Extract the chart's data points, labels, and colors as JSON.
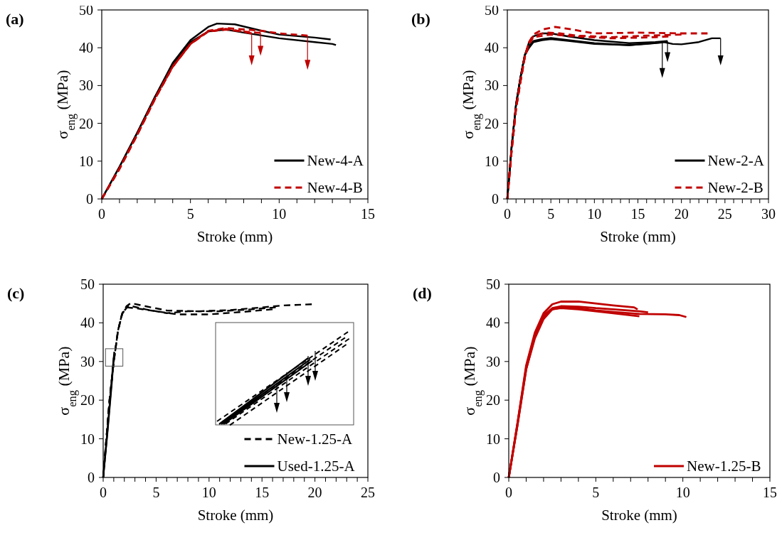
{
  "chart_data": [
    {
      "type": "line",
      "title": "(a)",
      "xlabel": "Stroke (mm)",
      "ylabel": "σ$_{eng}$ (MPa)",
      "xlim": [
        0,
        15
      ],
      "ylim": [
        0,
        50
      ],
      "yticks": [
        0,
        10,
        20,
        30,
        40,
        50
      ],
      "xticks": [
        0,
        {
          "value": 1,
          "label": null
        },
        {
          "value": 2,
          "label": null
        },
        {
          "value": 3,
          "label": null
        },
        {
          "value": 4,
          "label": null
        },
        5,
        {
          "value": 6,
          "label": null
        },
        {
          "value": 7,
          "label": null
        },
        {
          "value": 8,
          "label": null
        },
        {
          "value": 9,
          "label": null
        },
        10,
        {
          "value": 11,
          "label": null
        },
        {
          "value": 12,
          "label": null
        },
        {
          "value": 13,
          "label": null
        },
        {
          "value": 14,
          "label": null
        },
        15
      ],
      "legend": "bottom right",
      "series": [
        {
          "name": "New-4-A",
          "color": "#000000",
          "line_style": "solid",
          "x": [
            0,
            1,
            2,
            3,
            4,
            5,
            6,
            6.5,
            7.5,
            9,
            10,
            12,
            12.9
          ],
          "values": [
            0,
            8.5,
            17.5,
            27,
            36,
            42,
            45.5,
            46.4,
            46.2,
            44.5,
            43.5,
            42.7,
            42.2
          ]
        },
        {
          "color": "#000000",
          "line_style": "solid",
          "x": [
            0,
            1,
            2,
            3,
            4,
            5,
            6,
            7,
            8,
            10,
            12,
            13,
            13.2
          ],
          "values": [
            0,
            8.5,
            17.5,
            27,
            35.5,
            41.5,
            44.3,
            44.8,
            44,
            42.5,
            41.5,
            41,
            40.7
          ]
        },
        {
          "name": "New-4-B",
          "color": "#c00000",
          "line_style": "dashed",
          "x": [
            0,
            1,
            2,
            3,
            4,
            5,
            6,
            7,
            8,
            8.45
          ],
          "values": [
            0,
            8,
            17,
            26.5,
            35,
            41,
            44.3,
            45,
            44.2,
            43.8
          ]
        },
        {
          "color": "#c00000",
          "line_style": "dashed",
          "x": [
            0,
            1,
            2,
            3,
            4,
            5,
            6,
            7,
            8,
            8.95
          ],
          "values": [
            0,
            8,
            17,
            26.5,
            35,
            41,
            44.3,
            44.8,
            44.3,
            43.9
          ]
        },
        {
          "color": "#c00000",
          "line_style": "dashed",
          "x": [
            0,
            1,
            2,
            3,
            4,
            5,
            6,
            7,
            9,
            10,
            11.6
          ],
          "values": [
            0,
            8,
            17,
            26.5,
            35,
            41,
            44.5,
            45.2,
            44.5,
            43.8,
            43.2
          ]
        }
      ]
    },
    {
      "type": "line",
      "title": "(b)",
      "xlabel": "Stroke (mm)",
      "ylabel": "σ$_{eng}$ (MPa)",
      "xlim": [
        0,
        30
      ],
      "ylim": [
        0,
        50
      ],
      "yticks": [
        0,
        10,
        20,
        30,
        40,
        50
      ],
      "xticks": [
        0,
        {
          "value": 1,
          "label": null
        },
        {
          "value": 2,
          "label": null
        },
        {
          "value": 3,
          "label": null
        },
        {
          "value": 4,
          "label": null
        },
        5,
        {
          "value": 6,
          "label": null
        },
        {
          "value": 7,
          "label": null
        },
        {
          "value": 8,
          "label": null
        },
        {
          "value": 9,
          "label": null
        },
        10,
        {
          "value": 11,
          "label": null
        },
        {
          "value": 12,
          "label": null
        },
        {
          "value": 13,
          "label": null
        },
        {
          "value": 14,
          "label": null
        },
        15,
        {
          "value": 16,
          "label": null
        },
        {
          "value": 17,
          "label": null
        },
        {
          "value": 18,
          "label": null
        },
        {
          "value": 19,
          "label": null
        },
        20,
        {
          "value": 21,
          "label": null
        },
        {
          "value": 22,
          "label": null
        },
        {
          "value": 23,
          "label": null
        },
        {
          "value": 24,
          "label": null
        },
        25,
        {
          "value": 26,
          "label": null
        },
        {
          "value": 27,
          "label": null
        },
        {
          "value": 28,
          "label": null
        },
        {
          "value": 29,
          "label": null
        },
        30
      ],
      "legend": "bottom right",
      "series": [
        {
          "name": "New-2-A",
          "color": "#000000",
          "line_style": "solid",
          "x": [
            0,
            0.5,
            1,
            1.5,
            2,
            2.5,
            3,
            4,
            5,
            7,
            10,
            14,
            16,
            17.8
          ],
          "values": [
            0,
            14,
            25,
            32,
            38,
            40.5,
            41.8,
            42.3,
            42.6,
            42,
            41.2,
            40.7,
            41,
            41.4
          ]
        },
        {
          "color": "#000000",
          "line_style": "solid",
          "x": [
            0,
            0.5,
            1,
            1.5,
            2,
            2.5,
            3,
            4,
            5,
            7,
            10,
            14,
            17,
            18.4
          ],
          "values": [
            0,
            14,
            25,
            32,
            38,
            41.5,
            43,
            43.8,
            43.8,
            43,
            42,
            41.2,
            41.5,
            41.8
          ]
        },
        {
          "color": "#000000",
          "line_style": "solid",
          "x": [
            0,
            0.5,
            1,
            1.5,
            2,
            2.5,
            3,
            4,
            5,
            7,
            10,
            14,
            18,
            19,
            20,
            22,
            23.5,
            24.5
          ],
          "values": [
            0,
            14,
            25,
            32,
            38,
            40,
            41.5,
            42,
            42.3,
            41.8,
            41,
            40.7,
            41.5,
            41,
            40.9,
            41.5,
            42.5,
            42.5
          ]
        },
        {
          "name": "New-2-B",
          "color": "#c00000",
          "line_style": "dashed",
          "x": [
            0,
            0.5,
            1,
            1.5,
            2,
            2.5,
            3,
            4,
            5.5,
            7,
            10,
            15,
            20,
            23
          ],
          "values": [
            0,
            13,
            24,
            31,
            37.5,
            41.5,
            43.5,
            44.8,
            45.5,
            45,
            43.8,
            44,
            43.8,
            43.8
          ]
        },
        {
          "color": "#c00000",
          "line_style": "dashed",
          "x": [
            0,
            0.5,
            1,
            1.5,
            2,
            2.5,
            3,
            4.5,
            6,
            8,
            12,
            16,
            20
          ],
          "values": [
            0,
            13,
            24,
            31,
            37.5,
            41.5,
            43.2,
            44,
            43.8,
            43.2,
            42.8,
            43.2,
            43.5
          ]
        },
        {
          "color": "#c00000",
          "line_style": "dashed",
          "x": [
            0,
            0.5,
            1,
            1.5,
            2,
            2.5,
            3,
            5,
            8,
            12,
            17,
            18.5
          ],
          "values": [
            0,
            13,
            24,
            31,
            37.5,
            41,
            42.8,
            43.5,
            43,
            42.5,
            42.8,
            43
          ]
        }
      ]
    },
    {
      "type": "line",
      "title": "(c)",
      "xlabel": "Stroke (mm)",
      "ylabel": "σ$_{eng}$ (MPa)",
      "xlim": [
        0,
        25
      ],
      "ylim": [
        0,
        50
      ],
      "yticks": [
        0,
        10,
        20,
        30,
        40,
        50
      ],
      "xticks": [
        0,
        {
          "value": 1,
          "label": null
        },
        {
          "value": 2,
          "label": null
        },
        {
          "value": 3,
          "label": null
        },
        {
          "value": 4,
          "label": null
        },
        5,
        {
          "value": 6,
          "label": null
        },
        {
          "value": 7,
          "label": null
        },
        {
          "value": 8,
          "label": null
        },
        {
          "value": 9,
          "label": null
        },
        10,
        {
          "value": 11,
          "label": null
        },
        {
          "value": 12,
          "label": null
        },
        {
          "value": 13,
          "label": null
        },
        {
          "value": 14,
          "label": null
        },
        15,
        {
          "value": 16,
          "label": null
        },
        {
          "value": 17,
          "label": null
        },
        {
          "value": 18,
          "label": null
        },
        {
          "value": 19,
          "label": null
        },
        20,
        {
          "value": 21,
          "label": null
        },
        {
          "value": 22,
          "label": null
        },
        {
          "value": 23,
          "label": null
        },
        {
          "value": 24,
          "label": null
        },
        25
      ],
      "legend": "bottom right",
      "series": [
        {
          "name": "New-1.25-A",
          "color": "#000000",
          "line_style": "dashed",
          "x": [
            0,
            0.3,
            0.6,
            1,
            1.4,
            1.8,
            2.2,
            2.6,
            4,
            6,
            9,
            12,
            15,
            17,
            19.7
          ],
          "values": [
            0,
            10,
            20,
            30,
            38,
            42.5,
            44.3,
            45.1,
            44.3,
            43.2,
            43,
            43.3,
            44,
            44.5,
            44.8
          ]
        },
        {
          "color": "#000000",
          "line_style": "dashed",
          "x": [
            0,
            0.3,
            0.6,
            1,
            1.4,
            1.8,
            2.2,
            3,
            5,
            7,
            10,
            13,
            16
          ],
          "values": [
            0,
            10,
            20,
            30,
            38,
            42.3,
            44,
            43.8,
            43,
            42.2,
            42.2,
            42.8,
            43.5
          ]
        },
        {
          "color": "#000000",
          "line_style": "dashed",
          "x": [
            0,
            0.3,
            0.6,
            1,
            1.4,
            1.8,
            2.4,
            4,
            6,
            8,
            11,
            14,
            16.3
          ],
          "values": [
            0,
            10,
            20,
            30,
            38,
            42.5,
            44.5,
            43.5,
            42.5,
            43,
            43,
            43.5,
            44
          ]
        },
        {
          "name": "Used-1.25-A",
          "color": "#000000",
          "line_style": "solid",
          "x": [
            0,
            0.4,
            0.8,
            1.05
          ],
          "values": [
            0,
            12,
            25,
            32.5
          ]
        },
        {
          "color": "#000000",
          "line_style": "solid",
          "x": [
            0,
            0.4,
            0.8,
            1
          ],
          "values": [
            0,
            11.5,
            24,
            31
          ]
        }
      ]
    },
    {
      "type": "line",
      "title": "(d)",
      "xlabel": "Stroke (mm)",
      "ylabel": "σ$_{eng}$ (MPa)",
      "xlim": [
        0,
        15
      ],
      "ylim": [
        0,
        50
      ],
      "yticks": [
        0,
        10,
        20,
        30,
        40,
        50
      ],
      "xticks": [
        0,
        {
          "value": 1,
          "label": null
        },
        {
          "value": 2,
          "label": null
        },
        {
          "value": 3,
          "label": null
        },
        {
          "value": 4,
          "label": null
        },
        5,
        {
          "value": 6,
          "label": null
        },
        {
          "value": 7,
          "label": null
        },
        {
          "value": 8,
          "label": null
        },
        {
          "value": 9,
          "label": null
        },
        10,
        {
          "value": 11,
          "label": null
        },
        {
          "value": 12,
          "label": null
        },
        {
          "value": 13,
          "label": null
        },
        {
          "value": 14,
          "label": null
        },
        15
      ],
      "legend": "bottom right",
      "series": [
        {
          "name": "New-1.25-B",
          "color": "#c00000",
          "line_style": "solid",
          "x": [
            0,
            0.5,
            1,
            1.5,
            2,
            2.5,
            3,
            4,
            5,
            6,
            7.2,
            7.4
          ],
          "values": [
            0,
            14,
            29,
            37.5,
            42.5,
            44.8,
            45.5,
            45.5,
            45,
            44.5,
            44,
            43.5
          ]
        },
        {
          "color": "#c00000",
          "line_style": "solid",
          "x": [
            0,
            0.5,
            1,
            1.5,
            2,
            2.5,
            3,
            4,
            5,
            6,
            7.5,
            8
          ],
          "values": [
            0,
            14,
            28.5,
            37,
            42,
            43.8,
            44.3,
            44.2,
            43.8,
            43.5,
            43,
            42.7
          ]
        },
        {
          "color": "#c00000",
          "line_style": "solid",
          "x": [
            0,
            0.5,
            1,
            1.5,
            2,
            2.5,
            3,
            4,
            5,
            6,
            7.5,
            9,
            9.8,
            10.2
          ],
          "values": [
            0,
            13.5,
            28,
            36.5,
            41.5,
            43.5,
            44,
            43.8,
            43.2,
            42.8,
            42.3,
            42.2,
            42,
            41.5
          ]
        },
        {
          "color": "#c00000",
          "line_style": "solid",
          "x": [
            0,
            0.5,
            1,
            1.5,
            2,
            2.5,
            3,
            4,
            5,
            6,
            7.5
          ],
          "values": [
            0,
            13.5,
            28,
            36,
            41,
            43.5,
            43.8,
            43.5,
            43,
            42.5,
            41.7
          ]
        }
      ]
    }
  ]
}
